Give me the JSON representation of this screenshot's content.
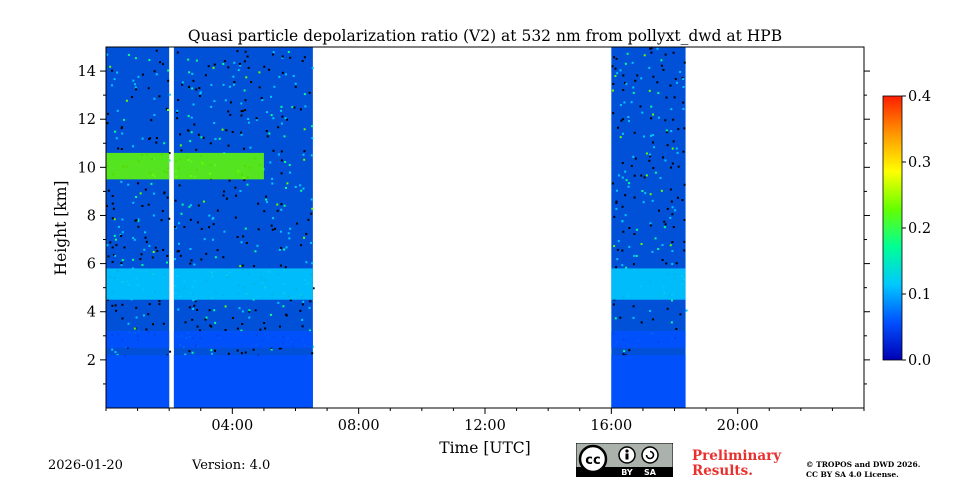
{
  "chart_data": {
    "type": "heatmap",
    "title": "Quasi particle depolarization ratio (V2) at 532 nm from pollyxt_dwd at HPB",
    "xlabel": "Time [UTC]",
    "ylabel": "Height [km]",
    "xlim_hours": [
      0,
      24
    ],
    "ylim_km": [
      0,
      15
    ],
    "x_ticks": [
      {
        "hours": 4,
        "label": "04:00"
      },
      {
        "hours": 8,
        "label": "08:00"
      },
      {
        "hours": 12,
        "label": "12:00"
      },
      {
        "hours": 16,
        "label": "16:00"
      },
      {
        "hours": 20,
        "label": "20:00"
      }
    ],
    "y_ticks": [
      {
        "km": 2,
        "label": "2"
      },
      {
        "km": 4,
        "label": "4"
      },
      {
        "km": 6,
        "label": "6"
      },
      {
        "km": 8,
        "label": "8"
      },
      {
        "km": 10,
        "label": "10"
      },
      {
        "km": 12,
        "label": "12"
      },
      {
        "km": 14,
        "label": "14"
      }
    ],
    "colorbar": {
      "range": [
        0.0,
        0.4
      ],
      "ticks": [
        {
          "value": 0.0,
          "label": "0.0"
        },
        {
          "value": 0.1,
          "label": "0.1"
        },
        {
          "value": 0.2,
          "label": "0.2"
        },
        {
          "value": 0.3,
          "label": "0.3"
        },
        {
          "value": 0.4,
          "label": "0.4"
        }
      ],
      "colormap": [
        "#0000b4",
        "#0050ff",
        "#00c8ff",
        "#00ff96",
        "#64ff00",
        "#ffff00",
        "#ff9600",
        "#ff1e00"
      ]
    },
    "data_segments": [
      {
        "start_hours": 0.0,
        "end_hours": 2.0
      },
      {
        "start_hours": 2.15,
        "end_hours": 6.55
      },
      {
        "start_hours": 16.0,
        "end_hours": 18.35
      }
    ],
    "layers": [
      {
        "name": "near-surface",
        "bottom_km": 0.0,
        "top_km": 2.2,
        "value": 0.03
      },
      {
        "name": "aerosol layer",
        "bottom_km": 2.5,
        "top_km": 3.2,
        "value": 0.05
      },
      {
        "name": "elevated layer",
        "bottom_km": 4.5,
        "top_km": 5.8,
        "value": 0.12
      },
      {
        "name": "cirrus",
        "start_hours": 0.0,
        "end_hours": 5.0,
        "bottom_km": 9.5,
        "top_km": 10.6,
        "value": 0.22
      }
    ]
  },
  "footer": {
    "date": "2026-01-20",
    "version": "Version: 4.0",
    "preliminary_line1": "Preliminary",
    "preliminary_line2": "Results.",
    "copyright_line1": "© TROPOS and DWD 2026.",
    "copyright_line2": "CC BY SA 4.0 License.",
    "license_by": "BY",
    "license_sa": "SA",
    "license_cc": "cc"
  }
}
